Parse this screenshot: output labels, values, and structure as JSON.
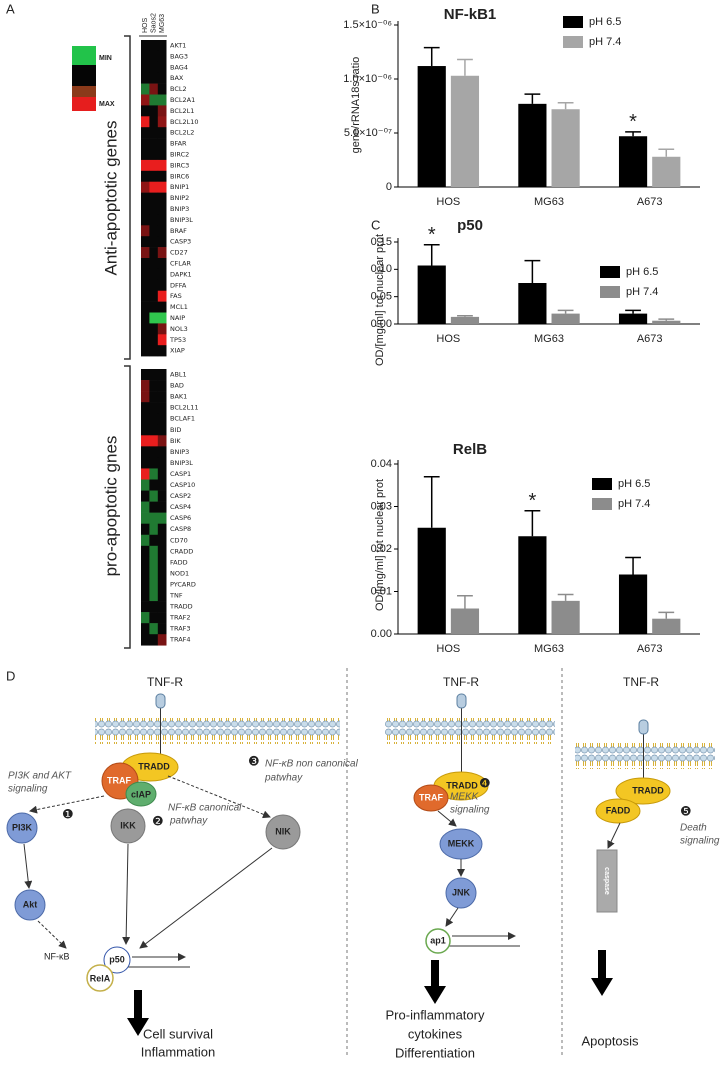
{
  "panel_labels": {
    "a": "A",
    "b": "B",
    "c": "C",
    "d": "D"
  },
  "heatmap": {
    "columns": [
      "HOS",
      "Saos2",
      "MG63"
    ],
    "legend": {
      "min": "MIN",
      "max": "MAX"
    },
    "groups": [
      {
        "label": "Anti-apoptotic genes",
        "genes": [
          "AKT1",
          "BAG3",
          "BAG4",
          "BAX",
          "BCL2",
          "BCL2A1",
          "BCL2L1",
          "BCL2L10",
          "BCL2L2",
          "BFAR",
          "BIRC2",
          "BIRC3",
          "BIRC6",
          "BNIP1",
          "BNIP2",
          "BNIP3",
          "BNIP3L",
          "BRAF",
          "CASP3",
          "CD27",
          "CFLAR",
          "DAPK1",
          "DFFA",
          "FAS",
          "MCL1",
          "NAIP",
          "NOL3",
          "TP53",
          "XIAP"
        ],
        "values": [
          [
            0,
            0,
            0
          ],
          [
            0,
            0,
            0
          ],
          [
            0,
            0,
            0
          ],
          [
            0,
            0,
            0
          ],
          [
            -0.6,
            0.5,
            0
          ],
          [
            0.6,
            -0.6,
            -0.6
          ],
          [
            0,
            0,
            0.5
          ],
          [
            1,
            0,
            0.6
          ],
          [
            0,
            0,
            0
          ],
          [
            0,
            0,
            0
          ],
          [
            0,
            0,
            0
          ],
          [
            1,
            1,
            1
          ],
          [
            0,
            0,
            0
          ],
          [
            0.6,
            1,
            1
          ],
          [
            0,
            0,
            0
          ],
          [
            0,
            0,
            0
          ],
          [
            0,
            0,
            0
          ],
          [
            0.5,
            0,
            0
          ],
          [
            0,
            0,
            0
          ],
          [
            0.5,
            0,
            0.5
          ],
          [
            0,
            0,
            0
          ],
          [
            0,
            0,
            0
          ],
          [
            0,
            0,
            0
          ],
          [
            0,
            0,
            1
          ],
          [
            0,
            0,
            0
          ],
          [
            0,
            -1,
            -1
          ],
          [
            0,
            0,
            0.5
          ],
          [
            0,
            0,
            1
          ],
          [
            0,
            0,
            0
          ]
        ]
      },
      {
        "label": "pro-apoptotic gnes",
        "genes": [
          "ABL1",
          "BAD",
          "BAK1",
          "BCL2L11",
          "BCLAF1",
          "BID",
          "BIK",
          "BNIP3",
          "BNIP3L",
          "CASP1",
          "CASP10",
          "CASP2",
          "CASP4",
          "CASP6",
          "CASP8",
          "CD70",
          "CRADD",
          "FADD",
          "NOD1",
          "PYCARD",
          "TNF",
          "TRADD",
          "TRAF2",
          "TRAF3",
          "TRAF4"
        ],
        "values": [
          [
            0,
            0,
            0
          ],
          [
            0.5,
            0,
            0
          ],
          [
            0.5,
            0,
            0
          ],
          [
            0,
            0,
            0
          ],
          [
            0,
            0,
            0
          ],
          [
            0,
            0,
            0
          ],
          [
            1,
            1,
            0.5
          ],
          [
            0,
            0,
            0
          ],
          [
            0,
            0,
            0
          ],
          [
            1,
            -0.6,
            0
          ],
          [
            -0.6,
            0,
            0
          ],
          [
            0,
            -0.6,
            0
          ],
          [
            -0.6,
            0,
            0
          ],
          [
            -0.6,
            -0.6,
            -0.6
          ],
          [
            0,
            -0.6,
            0
          ],
          [
            -0.6,
            0,
            0
          ],
          [
            0,
            -0.6,
            0
          ],
          [
            0,
            -0.6,
            0
          ],
          [
            0,
            -0.6,
            0
          ],
          [
            0,
            -0.6,
            0
          ],
          [
            0,
            -0.6,
            0
          ],
          [
            0,
            0,
            0
          ],
          [
            -0.6,
            0,
            0
          ],
          [
            0,
            -0.6,
            0
          ],
          [
            0,
            0,
            0.5
          ]
        ]
      }
    ]
  },
  "chart_data": [
    {
      "type": "bar",
      "title": "NF-kB1",
      "y_label": "gene/rRNA18s ratio",
      "categories": [
        "HOS",
        "MG63",
        "A673"
      ],
      "series": [
        {
          "name": "pH 6.5",
          "color": "#000000",
          "values": [
            1.12e-06,
            7.7e-07,
            4.7e-07
          ],
          "errors": [
            1.7e-07,
            9e-08,
            4e-08
          ]
        },
        {
          "name": "pH 7.4",
          "color": "#a6a6a6",
          "values": [
            1.03e-06,
            7.2e-07,
            2.8e-07
          ],
          "errors": [
            1.5e-07,
            6e-08,
            7e-08
          ]
        }
      ],
      "ylim": [
        0,
        1.5e-06
      ],
      "yticks": [
        0,
        {
          "value": 5e-07,
          "label": "5.0×10⁻⁰⁷"
        },
        {
          "value": 1e-06,
          "label": "1.0×10⁻⁰⁶"
        },
        {
          "value": 1.5e-06,
          "label": "1.5×10⁻⁰⁶"
        }
      ],
      "annotation": "*",
      "annotation_category": "A673",
      "legend": "top-right"
    },
    {
      "type": "bar",
      "title": "p50",
      "y_label": "OD/[mg/ml] tot nuclear prot",
      "categories": [
        "HOS",
        "MG63",
        "A673"
      ],
      "series": [
        {
          "name": "pH 6.5",
          "color": "#000000",
          "values": [
            0.107,
            0.075,
            0.019
          ],
          "errors": [
            0.038,
            0.041,
            0.006
          ]
        },
        {
          "name": "pH 7.4",
          "color": "#8c8c8c",
          "values": [
            0.013,
            0.019,
            0.006
          ],
          "errors": [
            0.002,
            0.006,
            0.003
          ]
        }
      ],
      "ylim": [
        0,
        0.15
      ],
      "yticks": [
        {
          "value": 0,
          "label": "0.00"
        },
        {
          "value": 0.05,
          "label": "0.05"
        },
        {
          "value": 0.1,
          "label": "0.10"
        },
        {
          "value": 0.15,
          "label": "0.15"
        }
      ],
      "annotation": "*",
      "annotation_category": "HOS",
      "legend": "top-right"
    },
    {
      "type": "bar",
      "title": "RelB",
      "y_label": "OD/[mg/ml] tot nuclear prot",
      "categories": [
        "HOS",
        "MG63",
        "A673"
      ],
      "series": [
        {
          "name": "pH 6.5",
          "color": "#000000",
          "values": [
            0.025,
            0.023,
            0.014
          ],
          "errors": [
            0.012,
            0.006,
            0.004
          ]
        },
        {
          "name": "pH 7.4",
          "color": "#8c8c8c",
          "values": [
            0.006,
            0.0078,
            0.0036
          ],
          "errors": [
            0.003,
            0.0015,
            0.0015
          ]
        }
      ],
      "ylim": [
        0,
        0.04
      ],
      "yticks": [
        {
          "value": 0,
          "label": "0.00"
        },
        {
          "value": 0.01,
          "label": "0.01"
        },
        {
          "value": 0.02,
          "label": "0.02"
        },
        {
          "value": 0.03,
          "label": "0.03"
        },
        {
          "value": 0.04,
          "label": "0.04"
        }
      ],
      "annotation": "*",
      "annotation_category": "MG63",
      "legend": "top-right"
    }
  ],
  "diagram": {
    "sections": [
      {
        "receptor": "TNF-R",
        "proteins": [
          "TRADD",
          "TRAF",
          "cIAP",
          "PI3K",
          "Akt",
          "IKK",
          "NIK",
          "p50",
          "RelA"
        ],
        "nfkb": "NF-κB",
        "pathways": [
          {
            "number": "❶",
            "lines": [
              "PI3K and AKT",
              "signaling"
            ]
          },
          {
            "number": "❷",
            "lines": [
              "NF-κB canonical",
              "patwhay"
            ]
          },
          {
            "number": "❸",
            "lines": [
              "NF-κB non canonical",
              "patwhay"
            ]
          }
        ],
        "outcome": [
          "Cell survival",
          "Inflammation"
        ]
      },
      {
        "receptor": "TNF-R",
        "proteins": [
          "TRADD",
          "TRAF",
          "MEKK",
          "JNK",
          "ap1"
        ],
        "pathways": [
          {
            "number": "❹",
            "lines": [
              "MEKK",
              "signaling"
            ]
          }
        ],
        "outcome": [
          "Pro-inflammatory",
          "cytokines",
          "Differentiation"
        ]
      },
      {
        "receptor": "TNF-R",
        "proteins": [
          "TRADD",
          "FADD",
          "caspase"
        ],
        "pathways": [
          {
            "number": "❺",
            "lines": [
              "Death",
              "signaling"
            ]
          }
        ],
        "outcome": [
          "Apoptosis"
        ]
      }
    ]
  }
}
